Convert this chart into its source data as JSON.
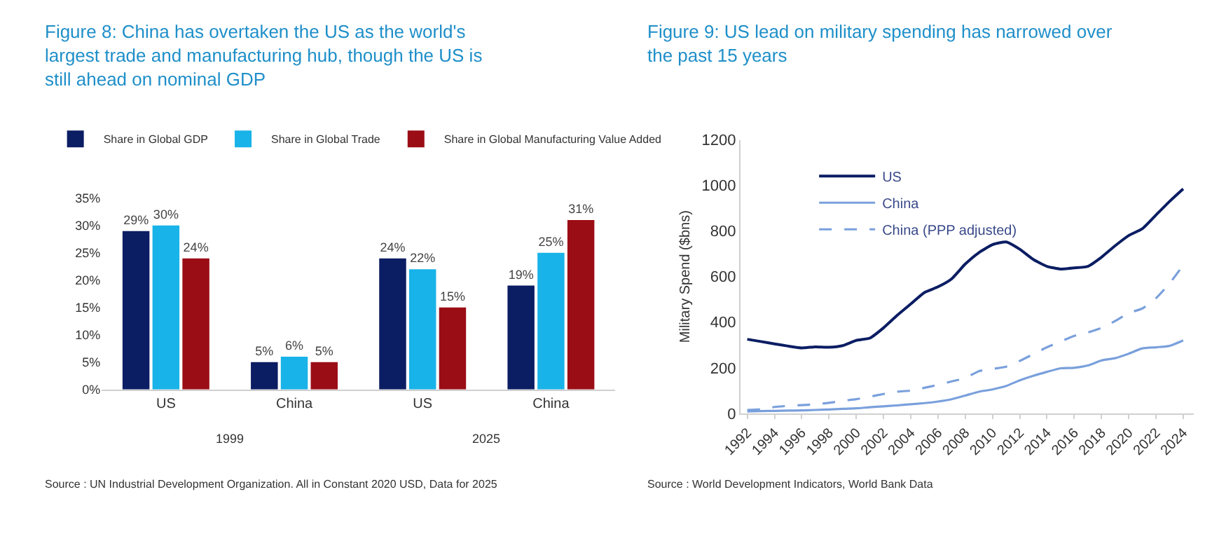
{
  "chart_data": [
    {
      "type": "bar",
      "title": "Figure 8: China has overtaken the US as the world's largest trade and manufacturing hub, though the US is still ahead on nominal GDP",
      "categories": [
        "US",
        "China",
        "US",
        "China"
      ],
      "series": [
        {
          "name": "Share in Global GDP",
          "color": "#0b1d63",
          "values": [
            29,
            5,
            24,
            19
          ],
          "value_labels": [
            "29%",
            "5%",
            "24%",
            "19%"
          ]
        },
        {
          "name": "Share in Global Trade",
          "color": "#18b3e8",
          "values": [
            30,
            6,
            22,
            25
          ],
          "value_labels": [
            "30%",
            "6%",
            "22%",
            "25%"
          ]
        },
        {
          "name": "Share in Global Manufacturing Value Added",
          "color": "#9b0d15",
          "values": [
            24,
            5,
            15,
            31
          ],
          "value_labels": [
            "24%",
            "5%",
            "15%",
            "31%"
          ]
        }
      ],
      "ylim": [
        0,
        35
      ],
      "yticks": [
        {
          "value": 0,
          "label": "0%"
        },
        {
          "value": 5,
          "label": "5%"
        },
        {
          "value": 10,
          "label": "10%"
        },
        {
          "value": 15,
          "label": "15%"
        },
        {
          "value": 20,
          "label": "20%"
        },
        {
          "value": 25,
          "label": "25%"
        },
        {
          "value": 30,
          "label": "30%"
        },
        {
          "value": 35,
          "label": "35%"
        }
      ],
      "legend": "top",
      "annotations": [
        "1999",
        "2025",
        "Source : UN Industrial Development Organization. All in Constant 2020 USD, Data for 2025"
      ]
    },
    {
      "type": "line",
      "title": "Figure 9: US lead on military spending has narrowed over the past 15 years",
      "ylabel": "Military Spend ($bns)",
      "x": [
        1992,
        1993,
        1994,
        1995,
        1996,
        1997,
        1998,
        1999,
        2000,
        2001,
        2002,
        2003,
        2004,
        2005,
        2006,
        2007,
        2008,
        2009,
        2010,
        2011,
        2012,
        2013,
        2014,
        2015,
        2016,
        2017,
        2018,
        2019,
        2020,
        2021,
        2022,
        2023,
        2024
      ],
      "series": [
        {
          "name": "US",
          "color": "#0b1d63",
          "values": [
            325,
            315,
            305,
            295,
            287,
            292,
            290,
            297,
            320,
            330,
            375,
            430,
            480,
            530,
            555,
            590,
            655,
            705,
            740,
            752,
            720,
            675,
            645,
            633,
            638,
            645,
            685,
            735,
            780,
            810,
            870,
            930,
            985
          ]
        },
        {
          "name": "China",
          "color": "#7aa0dc",
          "values": [
            8,
            10,
            11,
            12,
            13,
            15,
            17,
            20,
            22,
            27,
            31,
            35,
            40,
            45,
            52,
            62,
            78,
            95,
            105,
            120,
            145,
            165,
            182,
            198,
            200,
            210,
            232,
            242,
            262,
            285,
            290,
            296,
            320
          ]
        },
        {
          "name": "China (PPP adjusted)",
          "color": "#7aa0dc",
          "line_style": "dashed",
          "values": [
            15,
            18,
            28,
            33,
            36,
            40,
            46,
            55,
            62,
            73,
            85,
            95,
            100,
            112,
            125,
            140,
            155,
            185,
            195,
            205,
            230,
            260,
            290,
            315,
            340,
            355,
            375,
            405,
            440,
            460,
            505,
            570,
            650
          ]
        }
      ],
      "xlim": [
        1991.5,
        2024.8
      ],
      "xticks": [
        1992,
        1994,
        1996,
        1998,
        2000,
        2002,
        2004,
        2006,
        2008,
        2010,
        2012,
        2014,
        2016,
        2018,
        2020,
        2022,
        2024
      ],
      "ylim": [
        0,
        1200
      ],
      "yticks": [
        0,
        200,
        400,
        600,
        800,
        1000,
        1200
      ],
      "legend": "top left",
      "line_style": "solid",
      "marker": "none",
      "annotations": [
        "Source : World Development Indicators, World Bank Data"
      ]
    }
  ]
}
